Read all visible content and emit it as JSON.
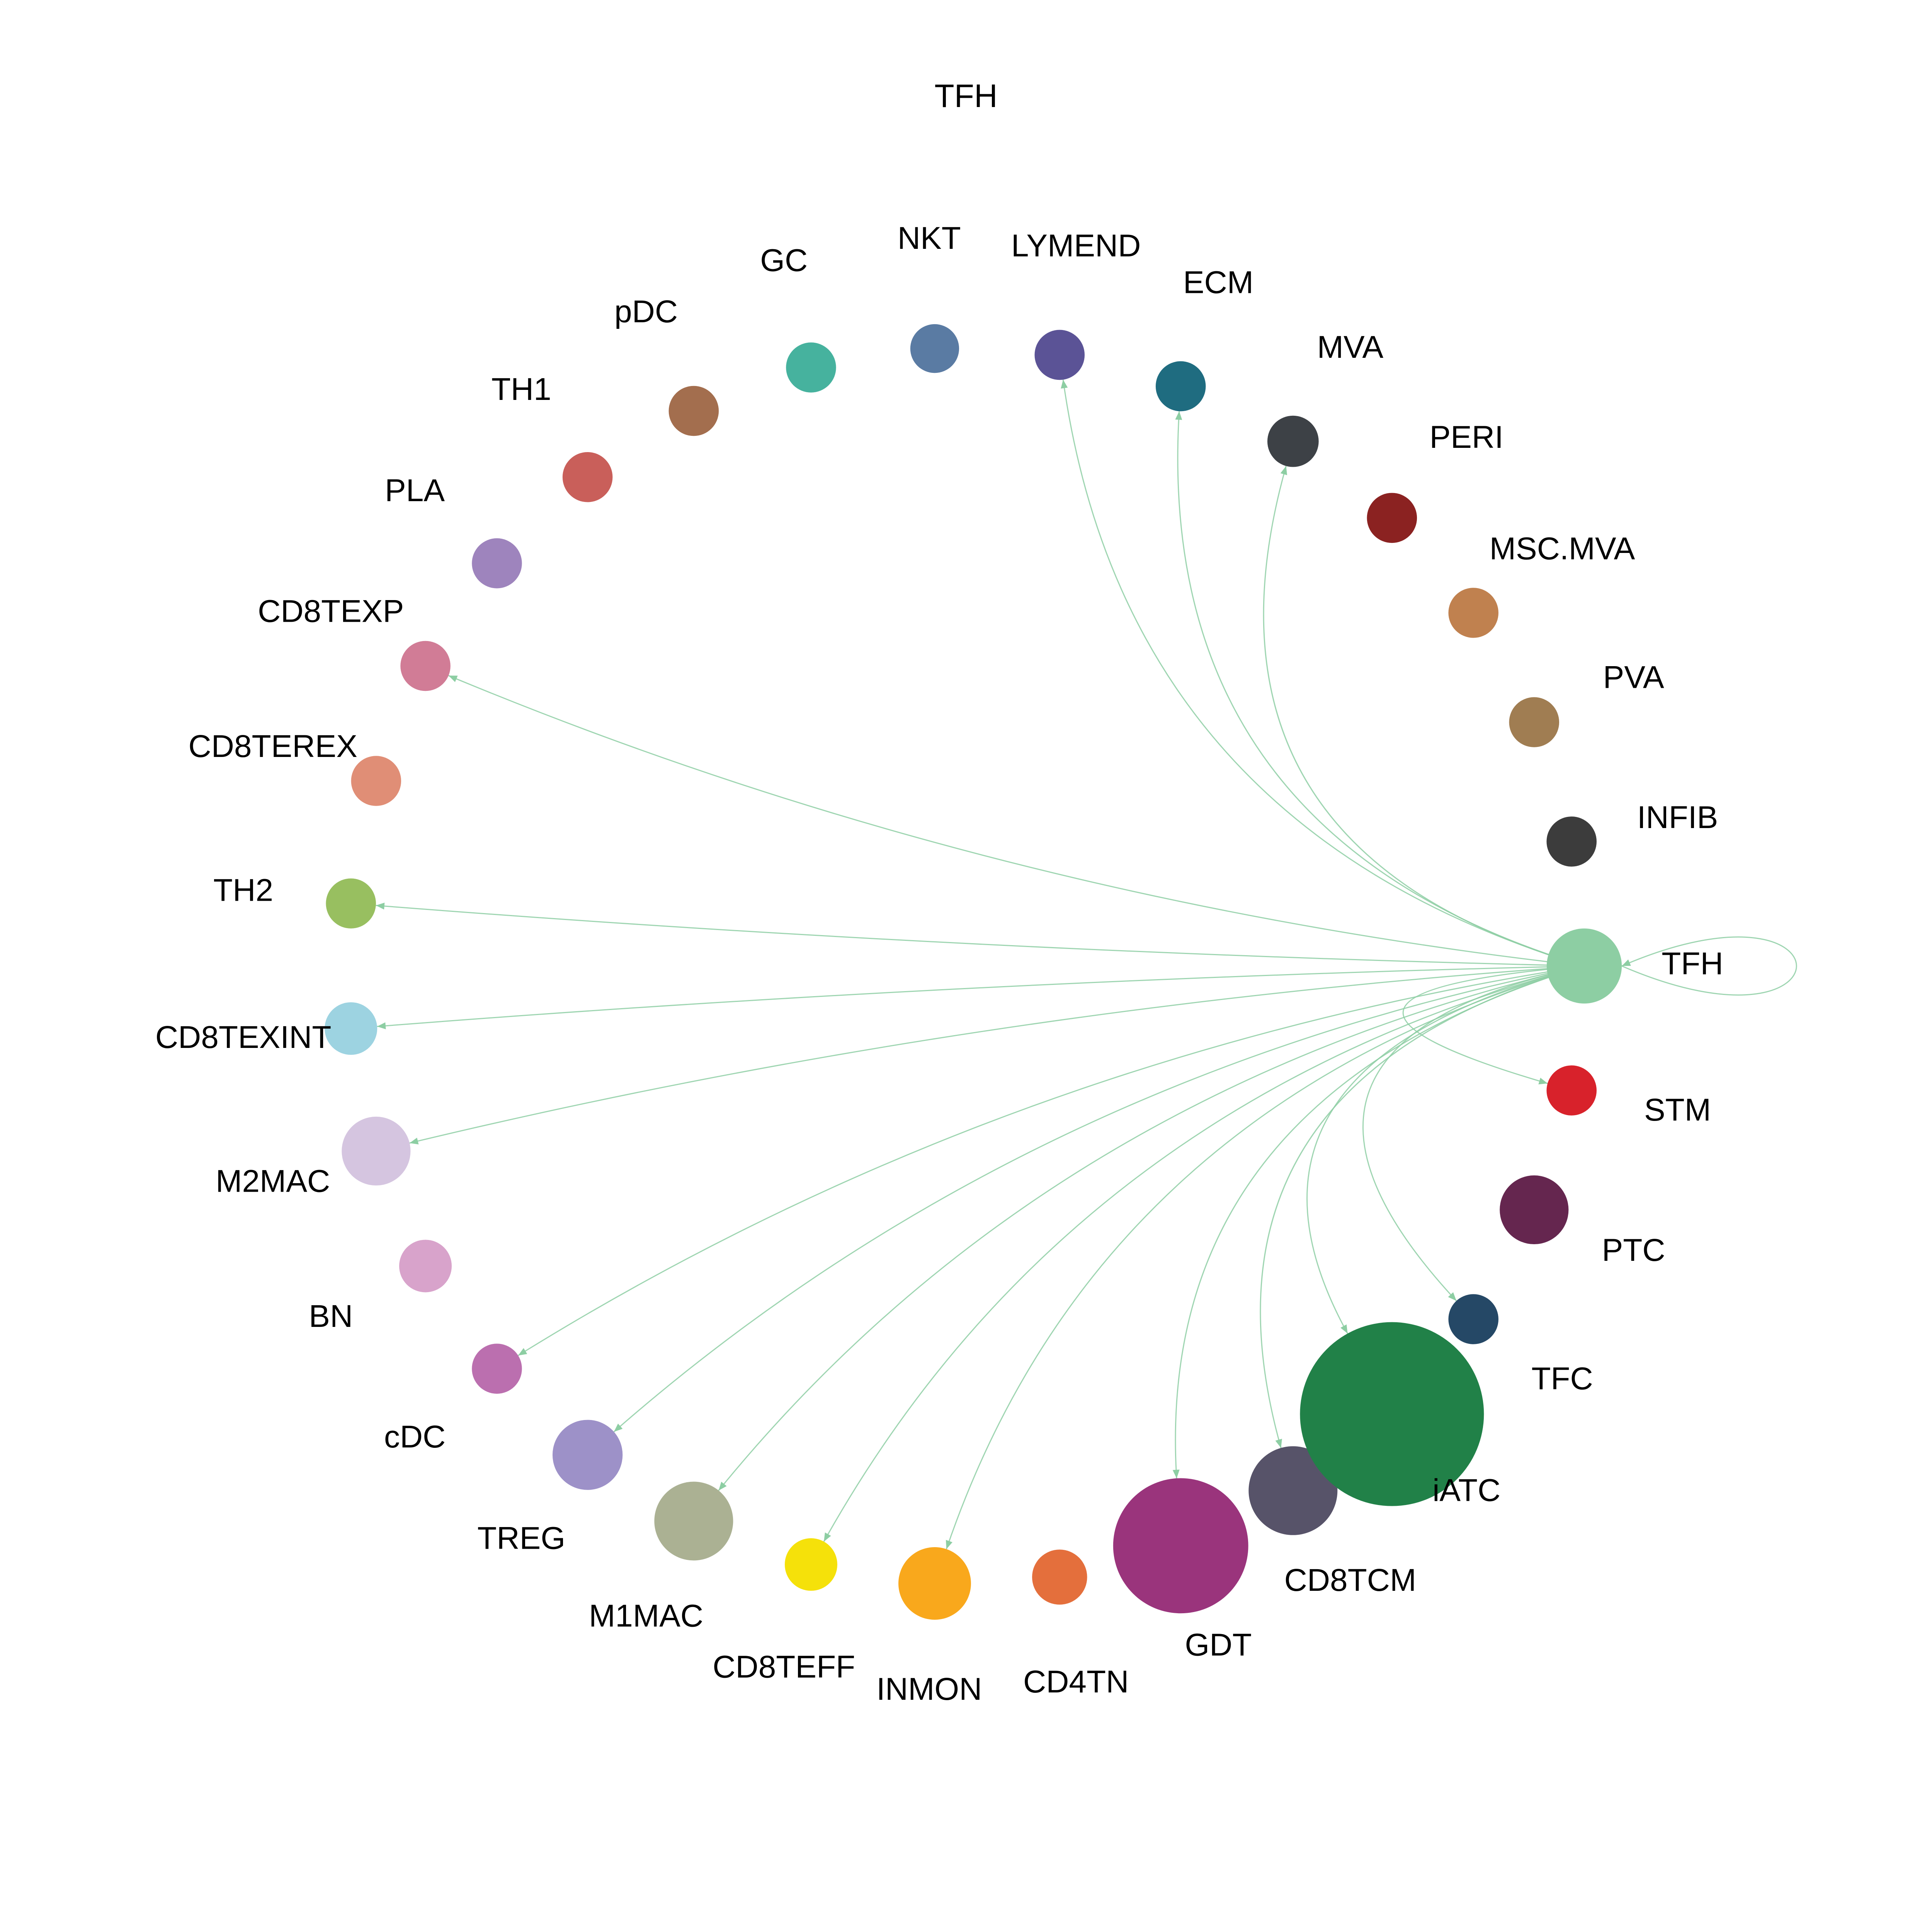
{
  "title": "TFH",
  "edge_color": "#8dcea3",
  "source": "TFH",
  "nodes": [
    {
      "name": "TFH",
      "color": "#8dcea3",
      "size": 60
    },
    {
      "name": "INFIB",
      "color": "#3c3c3c",
      "size": 40
    },
    {
      "name": "PVA",
      "color": "#a07d52",
      "size": 40
    },
    {
      "name": "MSC.MVA",
      "color": "#c0814f",
      "size": 40
    },
    {
      "name": "PERI",
      "color": "#8b2221",
      "size": 40
    },
    {
      "name": "MVA",
      "color": "#3d4146",
      "size": 41
    },
    {
      "name": "ECM",
      "color": "#1f6c80",
      "size": 40
    },
    {
      "name": "LYMEND",
      "color": "#5b5396",
      "size": 40
    },
    {
      "name": "NKT",
      "color": "#5a7ba3",
      "size": 39
    },
    {
      "name": "GC",
      "color": "#46b29e",
      "size": 40
    },
    {
      "name": "pDC",
      "color": "#a36e4e",
      "size": 40
    },
    {
      "name": "TH1",
      "color": "#c95f5a",
      "size": 40
    },
    {
      "name": "PLA",
      "color": "#9e84bd",
      "size": 40
    },
    {
      "name": "CD8TEXP",
      "color": "#d17c96",
      "size": 40
    },
    {
      "name": "CD8TEREX",
      "color": "#e08e76",
      "size": 40
    },
    {
      "name": "TH2",
      "color": "#98bf60",
      "size": 40
    },
    {
      "name": "CD8TEXINT",
      "color": "#9dd3e1",
      "size": 42
    },
    {
      "name": "M2MAC",
      "color": "#d5c5e0",
      "size": 55
    },
    {
      "name": "BN",
      "color": "#d8a3cb",
      "size": 42
    },
    {
      "name": "cDC",
      "color": "#bb6faf",
      "size": 40
    },
    {
      "name": "TREG",
      "color": "#9d91c8",
      "size": 56
    },
    {
      "name": "M1MAC",
      "color": "#abb193",
      "size": 63
    },
    {
      "name": "CD8TEFF",
      "color": "#f5e10a",
      "size": 42
    },
    {
      "name": "INMON",
      "color": "#f9a81c",
      "size": 58
    },
    {
      "name": "CD4TN",
      "color": "#e46f3c",
      "size": 44
    },
    {
      "name": "GDT",
      "color": "#9a347c",
      "size": 108
    },
    {
      "name": "CD8TCM",
      "color": "#575369",
      "size": 71
    },
    {
      "name": "iATC",
      "color": "#218148",
      "size": 147
    },
    {
      "name": "TFC",
      "color": "#254866",
      "size": 40
    },
    {
      "name": "PTC",
      "color": "#65264f",
      "size": 55
    },
    {
      "name": "STM",
      "color": "#d8222b",
      "size": 40
    }
  ],
  "edges": [
    {
      "from": "TFH",
      "to": "TFH"
    },
    {
      "from": "TFH",
      "to": "STM"
    },
    {
      "from": "TFH",
      "to": "TFC"
    },
    {
      "from": "TFH",
      "to": "iATC"
    },
    {
      "from": "TFH",
      "to": "CD8TCM"
    },
    {
      "from": "TFH",
      "to": "GDT"
    },
    {
      "from": "TFH",
      "to": "INMON"
    },
    {
      "from": "TFH",
      "to": "CD8TEFF"
    },
    {
      "from": "TFH",
      "to": "M1MAC"
    },
    {
      "from": "TFH",
      "to": "TREG"
    },
    {
      "from": "TFH",
      "to": "cDC"
    },
    {
      "from": "TFH",
      "to": "M2MAC"
    },
    {
      "from": "TFH",
      "to": "CD8TEXINT"
    },
    {
      "from": "TFH",
      "to": "TH2"
    },
    {
      "from": "TFH",
      "to": "CD8TEXP"
    },
    {
      "from": "TFH",
      "to": "LYMEND"
    },
    {
      "from": "TFH",
      "to": "ECM"
    },
    {
      "from": "TFH",
      "to": "MVA"
    }
  ]
}
